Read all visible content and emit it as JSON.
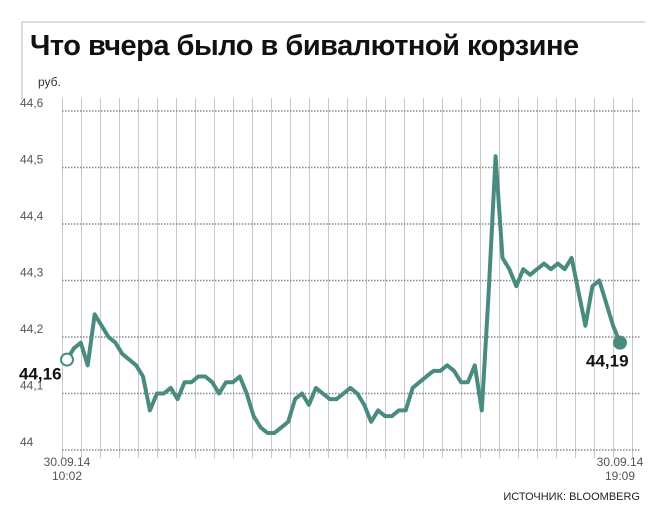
{
  "chart_data": {
    "type": "line",
    "title": "Что вчера было в бивалютной корзине",
    "y_unit": "руб.",
    "source": "ИСТОЧНИК: BLOOMBERG",
    "categories": [
      "30.09.14 10:02",
      null,
      null,
      null,
      null,
      null,
      null,
      null,
      null,
      null,
      null,
      null,
      null,
      null,
      null,
      null,
      null,
      null,
      null,
      null,
      null,
      null,
      null,
      null,
      null,
      null,
      null,
      null,
      null,
      null,
      null,
      null,
      null,
      null,
      null,
      null,
      null,
      null,
      null,
      null,
      null,
      null,
      null,
      null,
      null,
      null,
      null,
      null,
      null,
      null,
      null,
      null,
      null,
      null,
      null,
      null,
      null,
      null,
      null,
      null,
      null,
      null,
      null,
      null,
      null,
      null,
      null,
      null,
      null,
      null,
      null,
      null,
      null,
      null,
      null,
      null,
      null,
      null,
      null,
      null,
      "30.09.14 19:09"
    ],
    "values": [
      44.16,
      44.18,
      44.19,
      44.15,
      44.24,
      44.22,
      44.2,
      44.19,
      44.17,
      44.16,
      44.15,
      44.13,
      44.07,
      44.1,
      44.1,
      44.11,
      44.09,
      44.12,
      44.12,
      44.13,
      44.13,
      44.12,
      44.1,
      44.12,
      44.12,
      44.13,
      44.1,
      44.06,
      44.04,
      44.03,
      44.03,
      44.04,
      44.05,
      44.09,
      44.1,
      44.08,
      44.11,
      44.1,
      44.09,
      44.09,
      44.1,
      44.11,
      44.1,
      44.08,
      44.05,
      44.07,
      44.06,
      44.06,
      44.07,
      44.07,
      44.11,
      44.12,
      44.13,
      44.14,
      44.14,
      44.15,
      44.14,
      44.12,
      44.12,
      44.15,
      44.07,
      44.28,
      44.52,
      44.34,
      44.32,
      44.29,
      44.32,
      44.31,
      44.32,
      44.33,
      44.32,
      44.33,
      44.32,
      44.34,
      44.28,
      44.22,
      44.29,
      44.3,
      44.26,
      44.22,
      44.19
    ],
    "value_labels": [
      "44,16",
      null,
      null,
      null,
      null,
      null,
      null,
      null,
      null,
      null,
      null,
      null,
      null,
      null,
      null,
      null,
      null,
      null,
      null,
      null,
      null,
      null,
      null,
      null,
      null,
      null,
      null,
      null,
      null,
      null,
      null,
      null,
      null,
      null,
      null,
      null,
      null,
      null,
      null,
      null,
      null,
      null,
      null,
      null,
      null,
      null,
      null,
      null,
      null,
      null,
      null,
      null,
      null,
      null,
      null,
      null,
      null,
      null,
      null,
      null,
      null,
      null,
      null,
      null,
      null,
      null,
      null,
      null,
      null,
      null,
      null,
      null,
      null,
      null,
      null,
      null,
      null,
      null,
      null,
      null,
      "44,19"
    ],
    "color": "#4a8b80",
    "ylim": [
      44,
      44.6
    ],
    "yticks": [
      44,
      {
        "value": 44.1,
        "label": "44,1"
      },
      {
        "value": 44.2,
        "label": "44,2"
      },
      {
        "value": 44.3,
        "label": "44,3"
      },
      {
        "value": 44.4,
        "label": "44,4"
      },
      {
        "value": 44.5,
        "label": "44,5"
      },
      {
        "value": 44.6,
        "label": "44,6"
      }
    ],
    "grid": true
  }
}
